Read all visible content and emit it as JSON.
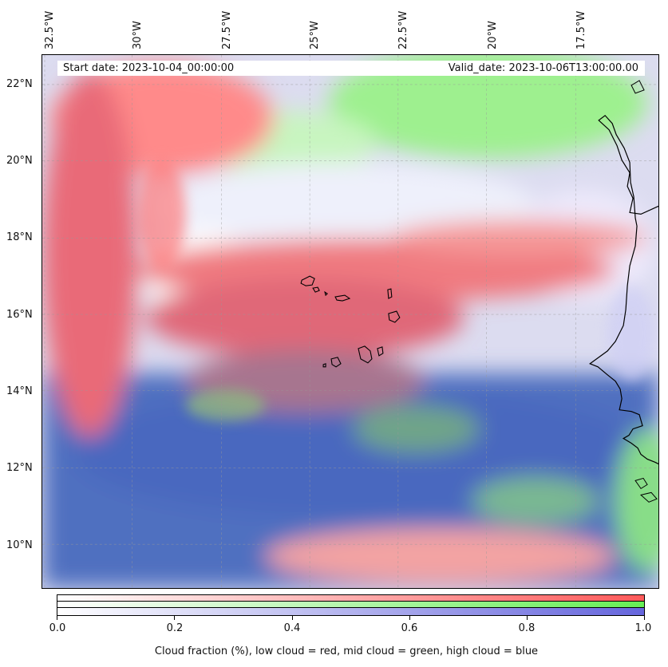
{
  "map": {
    "title_left": "Start date: 2023-10-04_00:00:00",
    "title_right": "Valid_date: 2023-10-06T13:00:00.00",
    "lon_labels": [
      "32.5°W",
      "30°W",
      "27.5°W",
      "25°W",
      "22.5°W",
      "20°W",
      "17.5°W"
    ],
    "lat_labels": [
      "22°N",
      "20°N",
      "18°N",
      "16°N",
      "14°N",
      "12°N",
      "10°N"
    ],
    "lon_range": [
      -33.0,
      -15.5
    ],
    "lat_range": [
      8.8,
      22.8
    ]
  },
  "colorbar": {
    "ticks": [
      "0.0",
      "0.2",
      "0.4",
      "0.6",
      "0.8",
      "1.0"
    ],
    "label": "Cloud fraction (%), low cloud = red, mid cloud = green, high cloud = blue",
    "colors": {
      "low": "#ff5a5a",
      "mid": "#66ee55",
      "high": "#6666dd"
    }
  }
}
